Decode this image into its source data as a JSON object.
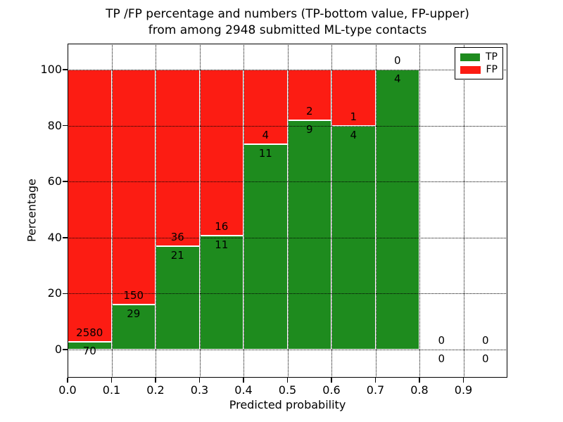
{
  "figure": {
    "title_line1": "TP /FP percentage and numbers (TP-bottom value, FP-upper)",
    "title_line2": "from among 2948 submitted ML-type contacts"
  },
  "chart_data": {
    "type": "bar",
    "stacked": true,
    "title": "TP /FP percentage and numbers (TP-bottom value, FP-upper) from among 2948 submitted ML-type contacts",
    "xlabel": "Predicted probability",
    "ylabel": "Percentage",
    "total_contacts": 2948,
    "bin_width": 0.1,
    "bins_x0": [
      0.0,
      0.1,
      0.2,
      0.3,
      0.4,
      0.5,
      0.6,
      0.7,
      0.8,
      0.9
    ],
    "x_tick_labels": [
      "0.0",
      "0.1",
      "0.2",
      "0.3",
      "0.4",
      "0.5",
      "0.6",
      "0.7",
      "0.8",
      "0.9"
    ],
    "y_ticks_pct": [
      0,
      20,
      40,
      60,
      80,
      100
    ],
    "y_tick_labels": [
      "0",
      "20",
      "40",
      "60",
      "80",
      "100"
    ],
    "xlim": [
      0.0,
      1.0
    ],
    "ylim_pct": [
      -10,
      109.3
    ],
    "series": [
      {
        "name": "TP",
        "color": "#1e8b1e",
        "counts": [
          70,
          29,
          21,
          11,
          11,
          9,
          4,
          4,
          0,
          0
        ]
      },
      {
        "name": "FP",
        "color": "#fc1c13",
        "counts": [
          2580,
          150,
          36,
          16,
          4,
          2,
          1,
          0,
          0,
          0
        ]
      }
    ],
    "percent_tp_per_bin": [
      2.6,
      16.2,
      36.8,
      40.7,
      73.3,
      81.8,
      80.0,
      100.0,
      0.0,
      0.0
    ],
    "grid": "dotted",
    "legend": {
      "position": "upper right",
      "entries": [
        {
          "label": "TP",
          "color": "#1e8b1e"
        },
        {
          "label": "FP",
          "color": "#fc1c13"
        }
      ]
    }
  }
}
